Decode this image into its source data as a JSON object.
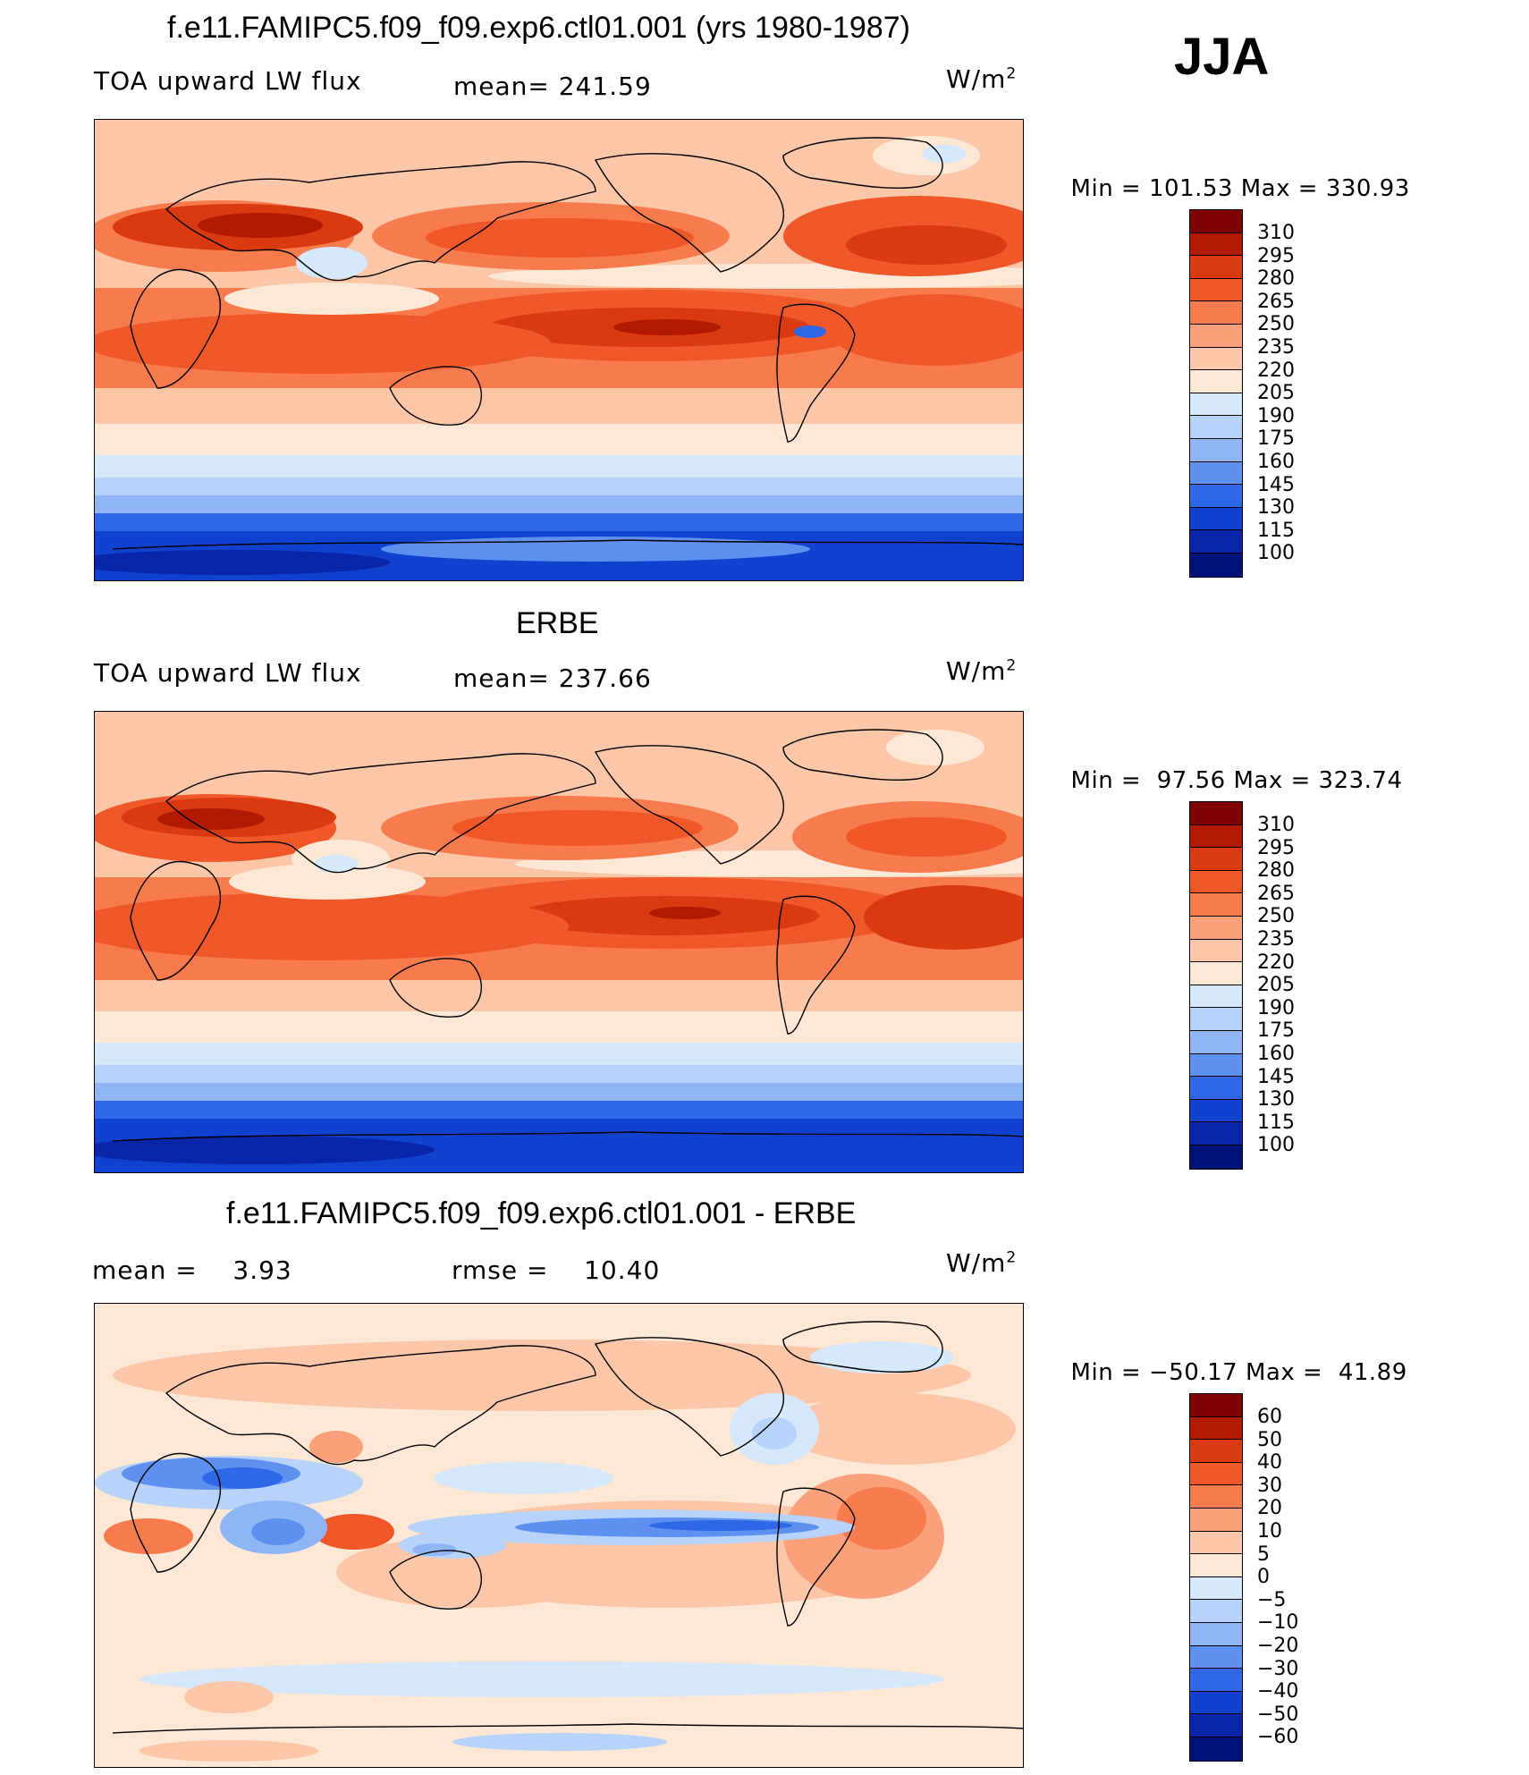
{
  "season": "JJA",
  "panels": [
    {
      "title": "f.e11.FAMIPC5.f09_f09.exp6.ctl01.001 (yrs 1980-1987)",
      "variable": "TOA upward LW flux",
      "stat1_label": "mean=",
      "stat1_value": "241.59",
      "stat2_label": "",
      "stat2_value": "",
      "units": "W/m",
      "units_exp": "2",
      "min_label": "Min =",
      "min_value": "101.53",
      "max_label": "Max =",
      "max_value": "330.93",
      "colorbar_ticks": [
        "310",
        "295",
        "280",
        "265",
        "250",
        "235",
        "220",
        "205",
        "190",
        "175",
        "160",
        "145",
        "130",
        "115",
        "100"
      ]
    },
    {
      "title": "ERBE",
      "variable": "TOA upward LW flux",
      "stat1_label": "mean=",
      "stat1_value": "237.66",
      "stat2_label": "",
      "stat2_value": "",
      "units": "W/m",
      "units_exp": "2",
      "min_label": "Min =",
      "min_value": "97.56",
      "max_label": "Max =",
      "max_value": "323.74",
      "colorbar_ticks": [
        "310",
        "295",
        "280",
        "265",
        "250",
        "235",
        "220",
        "205",
        "190",
        "175",
        "160",
        "145",
        "130",
        "115",
        "100"
      ]
    },
    {
      "title": "f.e11.FAMIPC5.f09_f09.exp6.ctl01.001 - ERBE",
      "variable": "",
      "stat1_label": "mean =",
      "stat1_value": "3.93",
      "stat2_label": "rmse =",
      "stat2_value": "10.40",
      "units": "W/m",
      "units_exp": "2",
      "min_label": "Min =",
      "min_value": "−50.17",
      "max_label": "Max =",
      "max_value": "41.89",
      "colorbar_ticks": [
        "60",
        "50",
        "40",
        "30",
        "20",
        "10",
        "5",
        "0",
        "−5",
        "−10",
        "−20",
        "−30",
        "−40",
        "−50",
        "−60"
      ]
    }
  ],
  "colors": {
    "scale": [
      "#7f0000",
      "#b21a00",
      "#d93a0f",
      "#f0582a",
      "#f77b4d",
      "#faa07a",
      "#fcc7a8",
      "#fde8d6",
      "#d6e8fb",
      "#b7d3fa",
      "#8fb5f5",
      "#5e91ef",
      "#2f68e6",
      "#1142cf",
      "#0925a8",
      "#00127a"
    ]
  }
}
